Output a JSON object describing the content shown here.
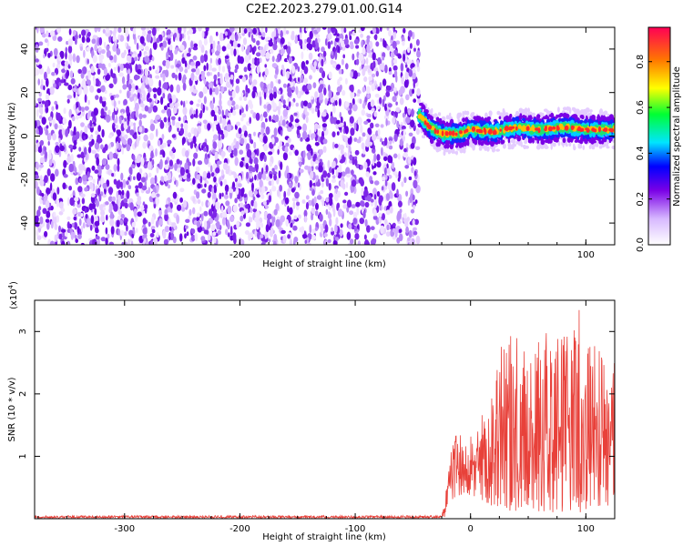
{
  "title": "C2E2.2023.279.01.00.G14",
  "chart_data": [
    {
      "type": "heatmap",
      "title": "",
      "xlabel": "Height of straight line (km)",
      "ylabel": "Frequency (Hz)",
      "xlim": [
        -378,
        125
      ],
      "ylim": [
        -50,
        50
      ],
      "x_ticks": [
        -300,
        -200,
        -100,
        0,
        100
      ],
      "y_ticks": [
        -40,
        -20,
        0,
        20,
        40
      ],
      "noise_region_x": [
        -378,
        -45
      ],
      "signal_track": [
        {
          "x": -45,
          "y": 10
        },
        {
          "x": -35,
          "y": 4
        },
        {
          "x": -25,
          "y": 1
        },
        {
          "x": -10,
          "y": 1
        },
        {
          "x": 0,
          "y": 3
        },
        {
          "x": 20,
          "y": 2
        },
        {
          "x": 40,
          "y": 4
        },
        {
          "x": 60,
          "y": 3
        },
        {
          "x": 80,
          "y": 4
        },
        {
          "x": 100,
          "y": 3
        },
        {
          "x": 125,
          "y": 3
        }
      ],
      "colorbar": {
        "label": "Normalized spectral amplitude",
        "range": [
          0,
          0.95
        ],
        "ticks": [
          "0.0",
          "0.2",
          "0.4",
          "0.6",
          "0.8"
        ]
      }
    },
    {
      "type": "line",
      "title": "",
      "xlabel": "Height of straight line (km)",
      "ylabel": "SNR (10 * v/v)",
      "scale_label": "(x10",
      "scale_exponent": "4",
      "scale_close": ")",
      "xlim": [
        -378,
        125
      ],
      "ylim": [
        0,
        3.5
      ],
      "x_ticks": [
        -300,
        -200,
        -100,
        0,
        100
      ],
      "y_ticks": [
        1,
        2,
        3
      ],
      "color": "#e8413a",
      "envelope": [
        {
          "x": -378,
          "min": 0.01,
          "max": 0.05
        },
        {
          "x": -25,
          "min": 0.01,
          "max": 0.05
        },
        {
          "x": -20,
          "min": 0.05,
          "max": 0.6
        },
        {
          "x": -15,
          "min": 0.3,
          "max": 1.4
        },
        {
          "x": -5,
          "min": 0.4,
          "max": 1.3
        },
        {
          "x": 5,
          "min": 0.3,
          "max": 1.5
        },
        {
          "x": 20,
          "min": 0.2,
          "max": 2.1
        },
        {
          "x": 30,
          "min": 0.1,
          "max": 3.1
        },
        {
          "x": 50,
          "min": 0.1,
          "max": 2.9
        },
        {
          "x": 70,
          "min": 0.1,
          "max": 3.0
        },
        {
          "x": 95,
          "min": 0.1,
          "max": 3.4
        },
        {
          "x": 110,
          "min": 0.2,
          "max": 2.7
        },
        {
          "x": 125,
          "min": 0.2,
          "max": 2.9
        }
      ]
    }
  ]
}
